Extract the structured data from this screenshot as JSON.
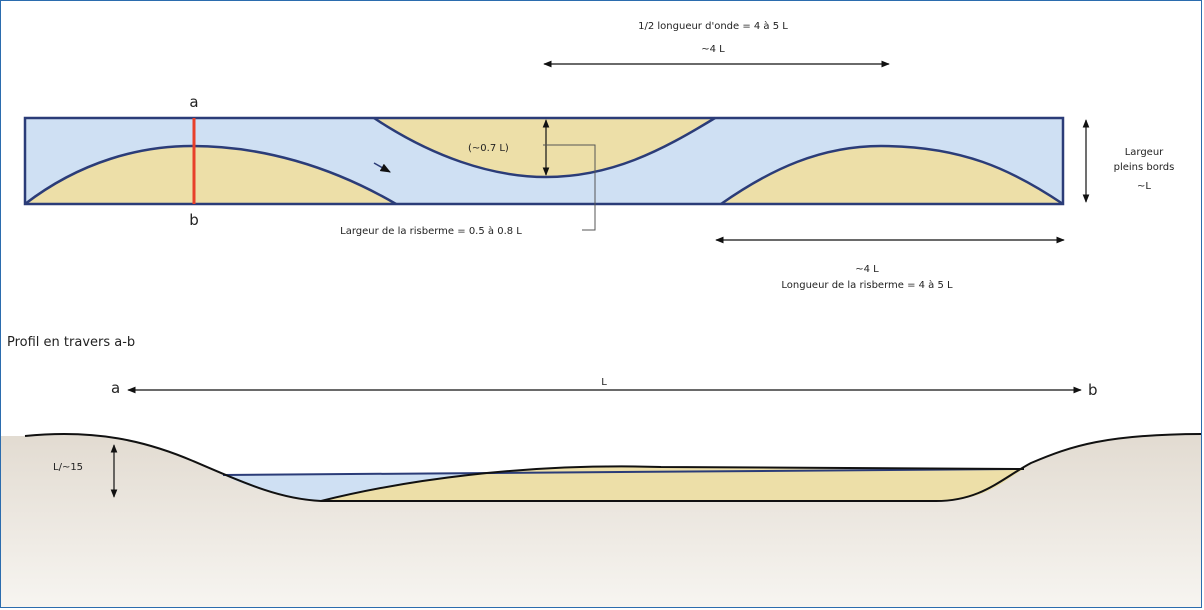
{
  "colors": {
    "water": "#cfe0f3",
    "bar": "#eddfa8",
    "bank_outline": "#2b3c78",
    "section_marker": "#e8402a",
    "ground_top": "#e2dbd1",
    "ground_bottom": "#f7f5f1",
    "arrow": "#111111",
    "frame": "#2b6cae"
  },
  "plan_view": {
    "half_wavelength_label": "1/2 longueur d'onde = 4 à 5 L",
    "half_wavelength_approx": "~4 L",
    "bar_width_approx": "(~0.7 L)",
    "bar_width_label": "Largeur de la risberme = 0.5 à 0.8 L",
    "bankfull_width_line1": "Largeur",
    "bankfull_width_line2": "pleins bords",
    "bankfull_width_value": "~L",
    "bar_length_approx": "~4 L",
    "bar_length_label": "Longueur de la risberme = 4 à 5 L",
    "section_top_label": "a",
    "section_bottom_label": "b"
  },
  "cross_section": {
    "title": "Profil en travers a-b",
    "left_label": "a",
    "right_label": "b",
    "width_label": "L",
    "depth_label": "L/~15"
  }
}
